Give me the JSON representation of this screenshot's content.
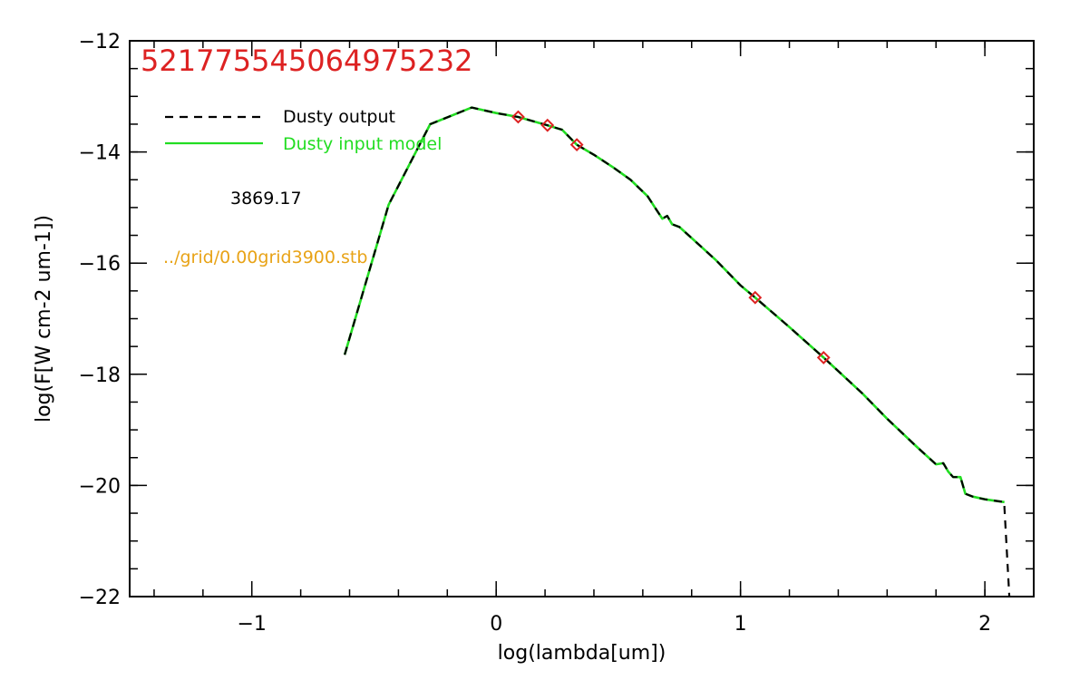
{
  "colors": {
    "axes": "#000000",
    "dusty_output": "#000000",
    "dusty_input": "#22dd22",
    "markers": "#dd2222",
    "title": "#dd2222",
    "grid_file": "#e8a317",
    "temperature": "#000000"
  },
  "chart_data": {
    "type": "line",
    "title": "52177554506497523 2",
    "title_text": "521775545064975232",
    "xlabel": "log(lambda[um])",
    "ylabel": "log(F[W cm-2 um-1])",
    "xlim": [
      -1.5,
      2.2
    ],
    "ylim": [
      -22,
      -12
    ],
    "xticks": [
      -1,
      0,
      1,
      2
    ],
    "xtick_labels": [
      "−1",
      "0",
      "1",
      "2"
    ],
    "yticks": [
      -22,
      -20,
      -18,
      -16,
      -14,
      -12
    ],
    "ytick_labels": [
      "−22",
      "−20",
      "−18",
      "−16",
      "−14",
      "−12"
    ],
    "x_minor_step": 0.2,
    "y_minor_step": 0.5,
    "grid": false,
    "legend_position": "top-left",
    "annotations": {
      "temperature": "3869.17",
      "grid_file": "../grid/0.00grid3900.stb"
    },
    "series": [
      {
        "name": "Dusty output",
        "style": "dashed",
        "x": [
          -0.62,
          -0.44,
          -0.27,
          -0.1,
          0.0,
          0.09,
          0.21,
          0.27,
          0.33,
          0.4,
          0.48,
          0.55,
          0.62,
          0.65,
          0.68,
          0.7,
          0.72,
          0.75,
          0.8,
          0.9,
          1.0,
          1.06,
          1.2,
          1.34,
          1.5,
          1.6,
          1.72,
          1.8,
          1.83,
          1.85,
          1.87,
          1.9,
          1.92,
          1.95,
          2.0,
          2.08,
          2.08,
          2.1
        ],
        "y": [
          -17.65,
          -14.95,
          -13.5,
          -13.2,
          -13.3,
          -13.37,
          -13.52,
          -13.6,
          -13.87,
          -14.05,
          -14.28,
          -14.5,
          -14.8,
          -15.0,
          -15.2,
          -15.15,
          -15.3,
          -15.35,
          -15.55,
          -15.95,
          -16.4,
          -16.62,
          -17.15,
          -17.7,
          -18.35,
          -18.8,
          -19.3,
          -19.62,
          -19.6,
          -19.75,
          -19.85,
          -19.85,
          -20.15,
          -20.2,
          -20.25,
          -20.3,
          -20.4,
          -22.0
        ]
      },
      {
        "name": "Dusty input model",
        "style": "solid",
        "x": [
          -0.62,
          -0.44,
          -0.27,
          -0.1,
          0.0,
          0.09,
          0.21,
          0.27,
          0.33,
          0.4,
          0.48,
          0.55,
          0.62,
          0.65,
          0.68,
          0.7,
          0.72,
          0.75,
          0.8,
          0.9,
          1.0,
          1.06,
          1.2,
          1.34,
          1.5,
          1.6,
          1.72,
          1.8,
          1.83,
          1.85,
          1.87,
          1.9,
          1.92,
          1.95,
          2.0,
          2.08
        ],
        "y": [
          -17.65,
          -14.95,
          -13.5,
          -13.2,
          -13.3,
          -13.37,
          -13.52,
          -13.6,
          -13.87,
          -14.05,
          -14.28,
          -14.5,
          -14.8,
          -15.0,
          -15.2,
          -15.15,
          -15.3,
          -15.35,
          -15.55,
          -15.95,
          -16.4,
          -16.62,
          -17.15,
          -17.7,
          -18.35,
          -18.8,
          -19.3,
          -19.62,
          -19.6,
          -19.75,
          -19.85,
          -19.85,
          -20.15,
          -20.2,
          -20.25,
          -20.3
        ]
      }
    ],
    "markers": {
      "shape": "diamond",
      "x": [
        0.09,
        0.21,
        0.33,
        1.06,
        1.34
      ],
      "y": [
        -13.37,
        -13.52,
        -13.87,
        -16.62,
        -17.7
      ]
    }
  }
}
